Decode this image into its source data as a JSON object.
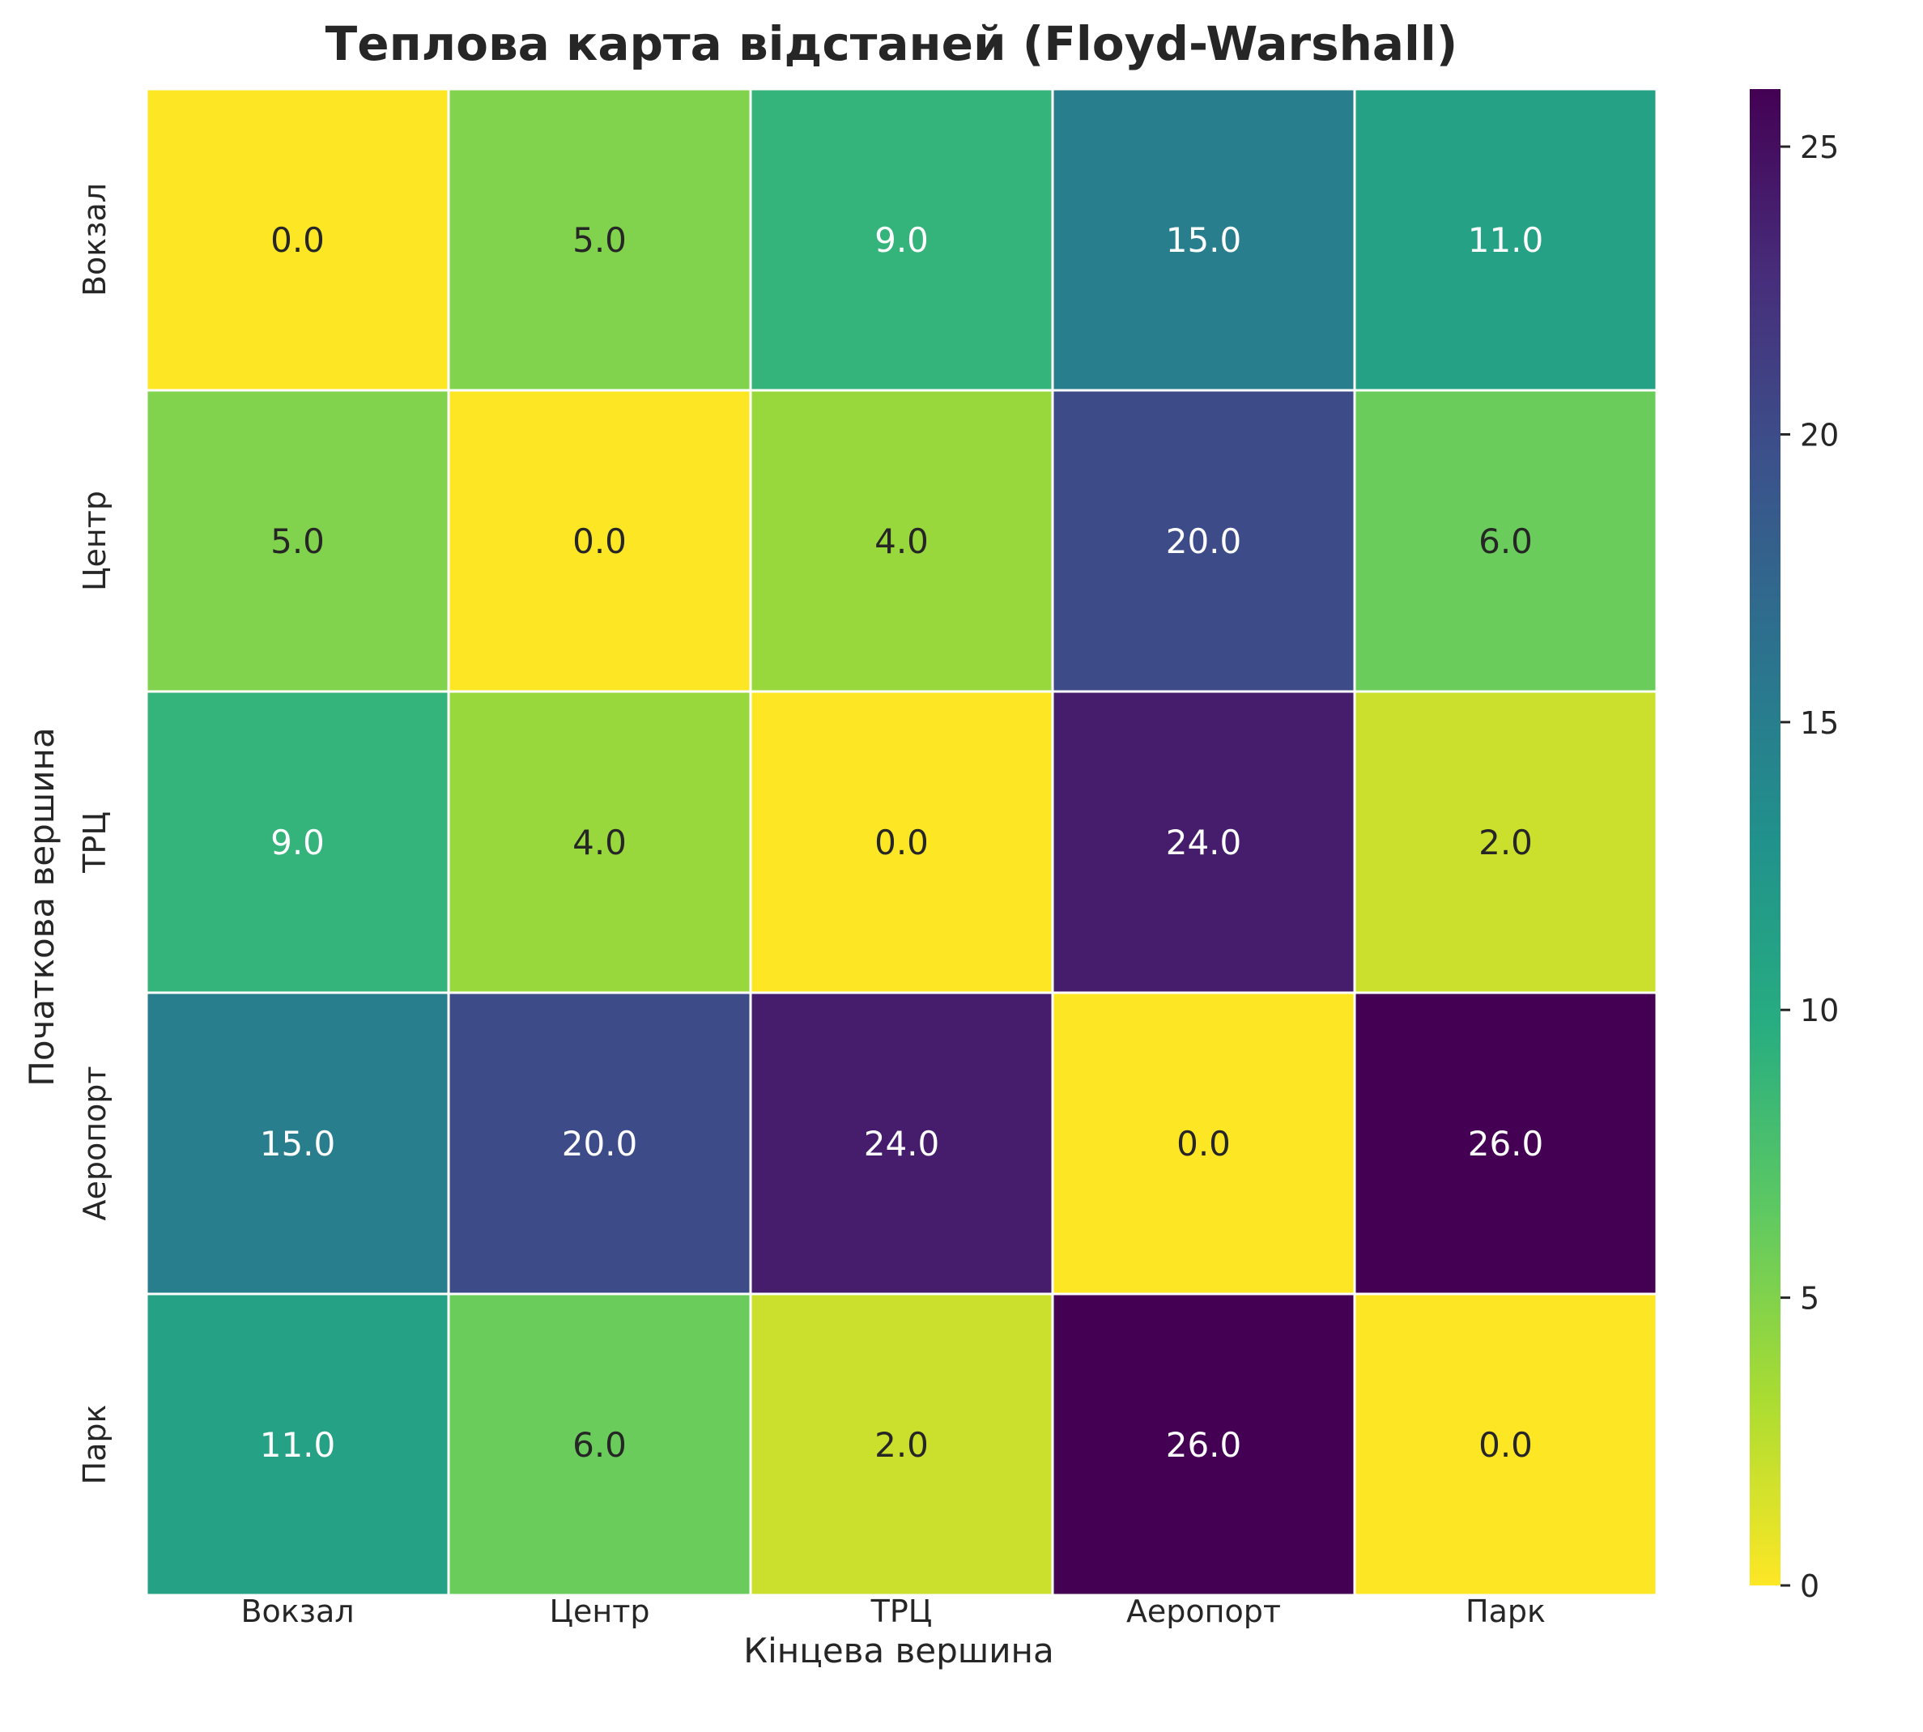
{
  "chart_data": {
    "type": "heatmap",
    "title": "Теплова карта відстаней (Floyd-Warshall)",
    "xlabel": "Кінцева вершина",
    "ylabel": "Початкова вершина",
    "x_categories": [
      "Вокзал",
      "Центр",
      "ТРЦ",
      "Аеропорт",
      "Парк"
    ],
    "y_categories": [
      "Вокзал",
      "Центр",
      "ТРЦ",
      "Аеропорт",
      "Парк"
    ],
    "values": [
      [
        0,
        5,
        9,
        15,
        11
      ],
      [
        5,
        0,
        4,
        20,
        6
      ],
      [
        9,
        4,
        0,
        24,
        2
      ],
      [
        15,
        20,
        24,
        0,
        26
      ],
      [
        11,
        6,
        2,
        26,
        0
      ]
    ],
    "cell_labels": [
      [
        "0.0",
        "5.0",
        "9.0",
        "15.0",
        "11.0"
      ],
      [
        "5.0",
        "0.0",
        "4.0",
        "20.0",
        "6.0"
      ],
      [
        "9.0",
        "4.0",
        "0.0",
        "24.0",
        "2.0"
      ],
      [
        "15.0",
        "20.0",
        "24.0",
        "0.0",
        "26.0"
      ],
      [
        "11.0",
        "6.0",
        "2.0",
        "26.0",
        "0.0"
      ]
    ],
    "colormap": "viridis_r",
    "vmin": 0,
    "vmax": 26,
    "colorbar_ticks": [
      0,
      5,
      10,
      15,
      20,
      25
    ],
    "colorbar_tick_labels": [
      "0",
      "5",
      "10",
      "15",
      "20",
      "25"
    ],
    "grid": false,
    "cell_border_color": "#ffffff",
    "text_color_dark": "#262626",
    "text_color_light": "#ffffff"
  }
}
